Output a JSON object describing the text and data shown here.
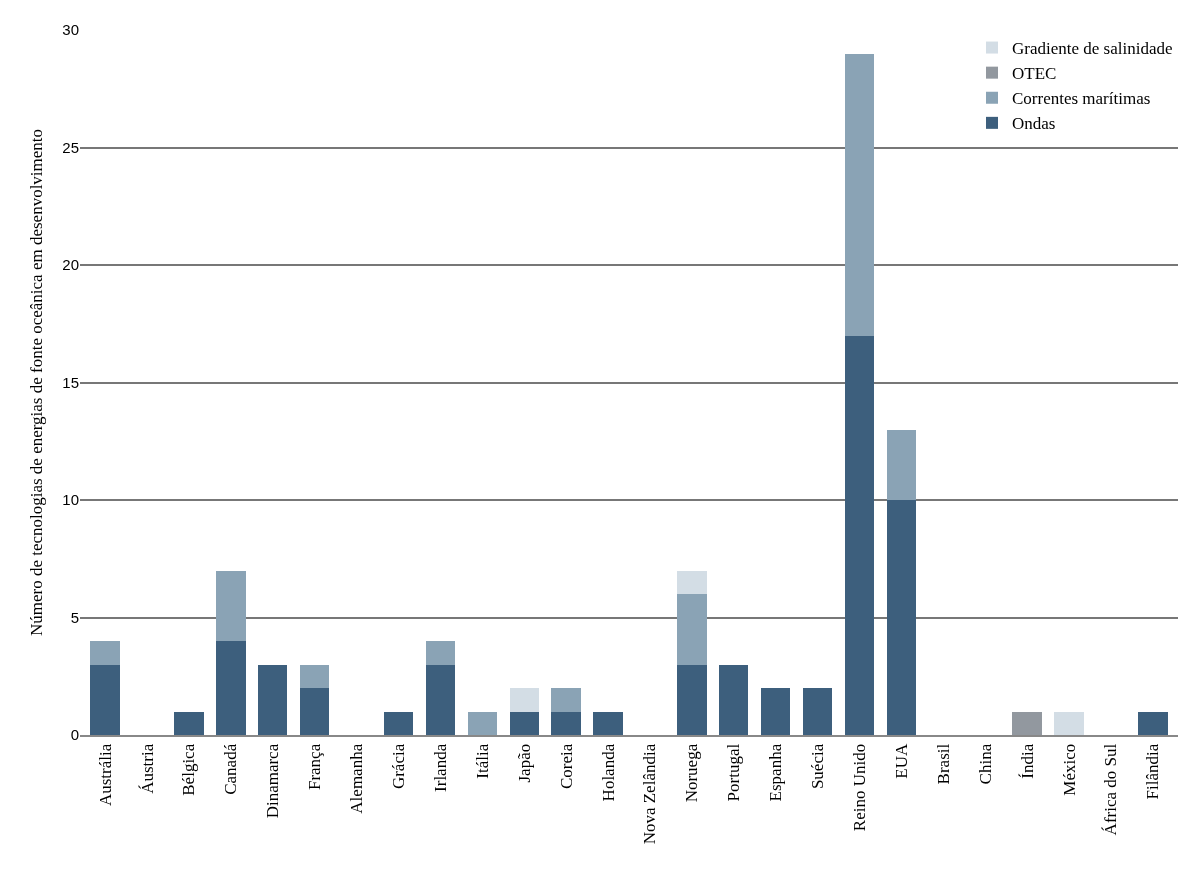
{
  "chart_data": {
    "type": "bar",
    "stacked": true,
    "ylabel": "Número de tecnologias de energias de fonte oceânica em desenvolvimento",
    "categories": [
      "Austrália",
      "Áustria",
      "Bélgica",
      "Canadá",
      "Dinamarca",
      "França",
      "Alemanha",
      "Grácia",
      "Irlanda",
      "Itália",
      "Japão",
      "Coreia",
      "Holanda",
      "Nova Zelândia",
      "Noruega",
      "Portugal",
      "Espanha",
      "Suécia",
      "Reino Unido",
      "EUA",
      "Brasil",
      "China",
      "Índia",
      "México",
      "África do Sul",
      "Filândia"
    ],
    "series": [
      {
        "name": "Ondas",
        "color": "#3d5f7d",
        "values": [
          3,
          0,
          1,
          4,
          3,
          2,
          0,
          1,
          3,
          0,
          1,
          1,
          1,
          0,
          3,
          3,
          2,
          2,
          17,
          10,
          0,
          0,
          0,
          0,
          0,
          1
        ]
      },
      {
        "name": "Correntes marítimas",
        "color": "#8aa3b5",
        "values": [
          1,
          0,
          0,
          3,
          0,
          1,
          0,
          0,
          1,
          1,
          0,
          1,
          0,
          0,
          3,
          0,
          0,
          0,
          12,
          3,
          0,
          0,
          0,
          0,
          0,
          0
        ]
      },
      {
        "name": "OTEC",
        "color": "#92989f",
        "values": [
          0,
          0,
          0,
          0,
          0,
          0,
          0,
          0,
          0,
          0,
          0,
          0,
          0,
          0,
          0,
          0,
          0,
          0,
          0,
          0,
          0,
          0,
          1,
          0,
          0,
          0
        ]
      },
      {
        "name": "Gradiente de salinidade",
        "color": "#d3dde5",
        "values": [
          0,
          0,
          0,
          0,
          0,
          0,
          0,
          0,
          0,
          0,
          1,
          0,
          0,
          0,
          1,
          0,
          0,
          0,
          0,
          0,
          0,
          0,
          0,
          1,
          0,
          0
        ]
      }
    ],
    "ylim": [
      0,
      30
    ],
    "yticks": [
      0,
      5,
      10,
      15,
      20,
      25,
      30
    ],
    "grid": "y",
    "legend": "top right"
  }
}
